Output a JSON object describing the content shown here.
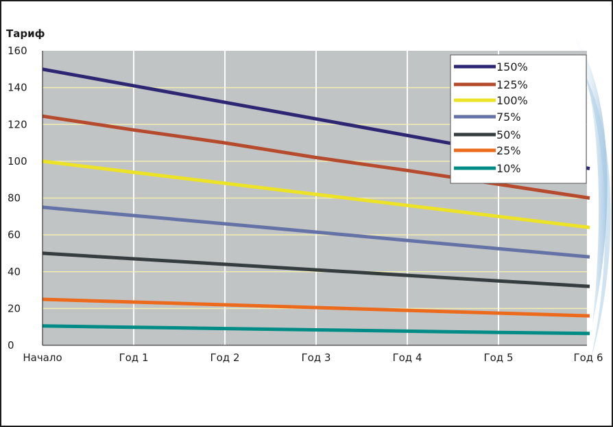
{
  "chart_data": {
    "type": "line",
    "ylabel": "Тариф",
    "xlabel": "",
    "title": "",
    "categories": [
      "Начало",
      "Год 1",
      "Год 2",
      "Год 3",
      "Год 4",
      "Год 5",
      "Год 6"
    ],
    "ylim": [
      0,
      160
    ],
    "yticks": [
      0,
      20,
      40,
      60,
      80,
      100,
      120,
      140,
      160
    ],
    "grid": true,
    "legend_position": "top-right",
    "colors": {
      "plot_background": "#c1c4c5",
      "horizontal_grid": "#f3eeb0",
      "vertical_grid": "#ffffff"
    },
    "series": [
      {
        "name": "150%",
        "color": "#2d2673",
        "values": [
          150,
          141,
          132,
          123,
          114,
          105,
          96
        ]
      },
      {
        "name": "125%",
        "color": "#b54a2c",
        "values": [
          124.5,
          117,
          110,
          102,
          95,
          87.5,
          80
        ]
      },
      {
        "name": "100%",
        "color": "#ece327",
        "values": [
          100,
          94,
          88,
          82,
          76,
          70,
          64
        ]
      },
      {
        "name": "75%",
        "color": "#6472a6",
        "values": [
          75,
          70.5,
          66,
          61.5,
          57,
          52.5,
          48
        ]
      },
      {
        "name": "50%",
        "color": "#363d3e",
        "values": [
          50,
          47,
          44,
          41,
          38,
          35,
          32
        ]
      },
      {
        "name": "25%",
        "color": "#ec6a1c",
        "values": [
          25,
          23.5,
          22,
          20.5,
          19,
          17.5,
          16
        ]
      },
      {
        "name": "10%",
        "color": "#008c86",
        "values": [
          10.5,
          9.8,
          9.1,
          8.4,
          7.7,
          7.0,
          6.4
        ]
      }
    ]
  }
}
